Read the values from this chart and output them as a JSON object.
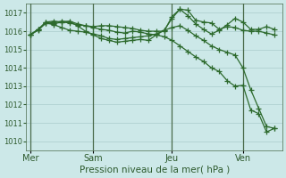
{
  "background_color": "#cce8e8",
  "grid_color": "#aacccc",
  "line_color": "#2d6a2d",
  "title": "Pression niveau de la mer( hPa )",
  "xlabel_day_labels": [
    "Mer",
    "Sam",
    "Jeu",
    "Ven"
  ],
  "xlabel_day_positions": [
    0,
    8,
    18,
    27
  ],
  "xlim": [
    -0.5,
    32
  ],
  "ylim": [
    1009.5,
    1017.5
  ],
  "yticks": [
    1010,
    1011,
    1012,
    1013,
    1014,
    1015,
    1016,
    1017
  ],
  "vline_positions": [
    0,
    8,
    18,
    27
  ],
  "series": [
    {
      "x": [
        0,
        1,
        2,
        3,
        4,
        5,
        6,
        7,
        8,
        9,
        10,
        11,
        12,
        13,
        14,
        15,
        16,
        17,
        18,
        19,
        20,
        21,
        22,
        23,
        24,
        25,
        26,
        27,
        28,
        29,
        30,
        31
      ],
      "y": [
        1015.8,
        1016.05,
        1016.45,
        1016.4,
        1016.5,
        1016.45,
        1016.35,
        1016.3,
        1016.2,
        1016.1,
        1016.05,
        1015.95,
        1015.9,
        1016.0,
        1015.95,
        1015.85,
        1015.8,
        1015.7,
        1015.5,
        1015.2,
        1014.9,
        1014.6,
        1014.35,
        1014.0,
        1013.8,
        1013.3,
        1013.0,
        1013.05,
        1011.7,
        1011.5,
        1010.5,
        1010.7
      ]
    },
    {
      "x": [
        0,
        1,
        2,
        3,
        4,
        5,
        6,
        7,
        8,
        9,
        10,
        11,
        12,
        13,
        14,
        15,
        16,
        17,
        18,
        19,
        20,
        21,
        22,
        23,
        24,
        25,
        26,
        27,
        28,
        29,
        30,
        31
      ],
      "y": [
        1015.8,
        1016.1,
        1016.5,
        1016.55,
        1016.5,
        1016.55,
        1016.4,
        1016.3,
        1016.25,
        1016.3,
        1016.3,
        1016.25,
        1016.2,
        1016.15,
        1016.05,
        1016.0,
        1016.0,
        1016.0,
        1016.8,
        1017.2,
        1017.15,
        1016.6,
        1016.5,
        1016.45,
        1016.1,
        1016.25,
        1016.2,
        1016.05,
        1016.0,
        1016.0,
        1015.9,
        1015.8
      ]
    },
    {
      "x": [
        0,
        1,
        2,
        3,
        4,
        5,
        6,
        7,
        8,
        9,
        10,
        11,
        12,
        13,
        14,
        15,
        16,
        17,
        18,
        19,
        20,
        21,
        22,
        23,
        24,
        25,
        26,
        27,
        28,
        29,
        30,
        31
      ],
      "y": [
        1015.8,
        1016.1,
        1016.5,
        1016.45,
        1016.55,
        1016.5,
        1016.3,
        1016.0,
        1015.8,
        1015.6,
        1015.5,
        1015.4,
        1015.45,
        1015.5,
        1015.55,
        1015.5,
        1015.8,
        1016.05,
        1016.7,
        1017.2,
        1016.85,
        1016.4,
        1016.1,
        1015.85,
        1016.05,
        1016.35,
        1016.7,
        1016.5,
        1016.1,
        1016.1,
        1016.25,
        1016.1
      ]
    },
    {
      "x": [
        0,
        1,
        2,
        3,
        4,
        5,
        6,
        7,
        8,
        9,
        10,
        11,
        12,
        13,
        14,
        15,
        16,
        17,
        18,
        19,
        20,
        21,
        22,
        23,
        24,
        25,
        26,
        27,
        28,
        29,
        30,
        31
      ],
      "y": [
        1015.8,
        1016.1,
        1016.45,
        1016.35,
        1016.2,
        1016.05,
        1016.0,
        1015.95,
        1015.85,
        1015.75,
        1015.6,
        1015.55,
        1015.6,
        1015.65,
        1015.7,
        1015.75,
        1015.85,
        1016.05,
        1016.2,
        1016.3,
        1016.05,
        1015.75,
        1015.5,
        1015.2,
        1015.0,
        1014.85,
        1014.7,
        1014.0,
        1012.8,
        1011.8,
        1010.8,
        1010.7
      ]
    }
  ]
}
